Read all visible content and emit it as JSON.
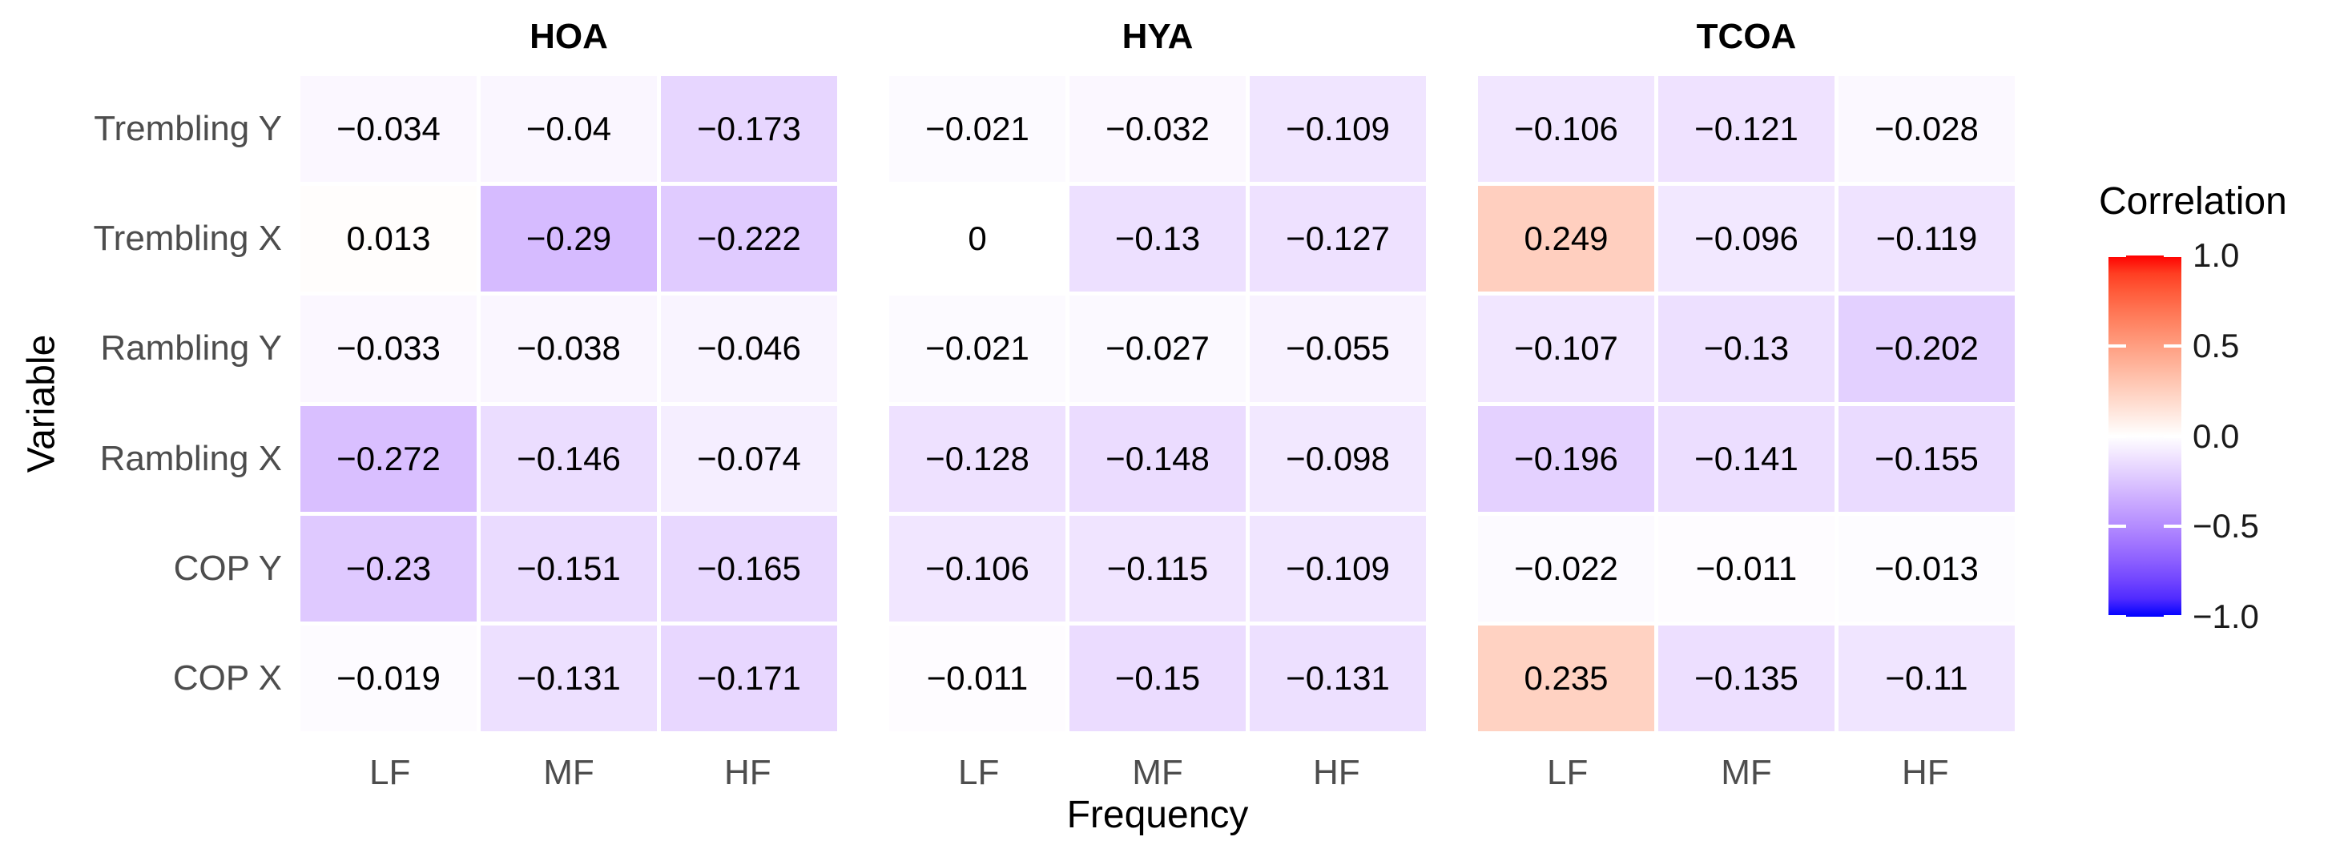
{
  "chart_data": {
    "type": "heatmap",
    "xlabel": "Frequency",
    "ylabel": "Variable",
    "rows": [
      "Trembling Y",
      "Trembling X",
      "Rambling Y",
      "Rambling X",
      "COP Y",
      "COP X"
    ],
    "columns": [
      "LF",
      "MF",
      "HF"
    ],
    "facets": [
      {
        "title": "HOA",
        "values": [
          [
            -0.034,
            -0.04,
            -0.173
          ],
          [
            0.013,
            -0.29,
            -0.222
          ],
          [
            -0.033,
            -0.038,
            -0.046
          ],
          [
            -0.272,
            -0.146,
            -0.074
          ],
          [
            -0.23,
            -0.151,
            -0.165
          ],
          [
            -0.019,
            -0.131,
            -0.171
          ]
        ],
        "labels": [
          [
            "−0.034",
            "−0.04",
            "−0.173"
          ],
          [
            "0.013",
            "−0.29",
            "−0.222"
          ],
          [
            "−0.033",
            "−0.038",
            "−0.046"
          ],
          [
            "−0.272",
            "−0.146",
            "−0.074"
          ],
          [
            "−0.23",
            "−0.151",
            "−0.165"
          ],
          [
            "−0.019",
            "−0.131",
            "−0.171"
          ]
        ]
      },
      {
        "title": "HYA",
        "values": [
          [
            -0.021,
            -0.032,
            -0.109
          ],
          [
            0,
            -0.13,
            -0.127
          ],
          [
            -0.021,
            -0.027,
            -0.055
          ],
          [
            -0.128,
            -0.148,
            -0.098
          ],
          [
            -0.106,
            -0.115,
            -0.109
          ],
          [
            -0.011,
            -0.15,
            -0.131
          ]
        ],
        "labels": [
          [
            "−0.021",
            "−0.032",
            "−0.109"
          ],
          [
            "0",
            "−0.13",
            "−0.127"
          ],
          [
            "−0.021",
            "−0.027",
            "−0.055"
          ],
          [
            "−0.128",
            "−0.148",
            "−0.098"
          ],
          [
            "−0.106",
            "−0.115",
            "−0.109"
          ],
          [
            "−0.011",
            "−0.15",
            "−0.131"
          ]
        ]
      },
      {
        "title": "TCOA",
        "values": [
          [
            -0.106,
            -0.121,
            -0.028
          ],
          [
            0.249,
            -0.096,
            -0.119
          ],
          [
            -0.107,
            -0.13,
            -0.202
          ],
          [
            -0.196,
            -0.141,
            -0.155
          ],
          [
            -0.022,
            -0.011,
            -0.013
          ],
          [
            0.235,
            -0.135,
            -0.11
          ]
        ],
        "labels": [
          [
            "−0.106",
            "−0.121",
            "−0.028"
          ],
          [
            "0.249",
            "−0.096",
            "−0.119"
          ],
          [
            "−0.107",
            "−0.13",
            "−0.202"
          ],
          [
            "−0.196",
            "−0.141",
            "−0.155"
          ],
          [
            "−0.022",
            "−0.011",
            "−0.013"
          ],
          [
            "0.235",
            "−0.135",
            "−0.11"
          ]
        ]
      }
    ],
    "legend": {
      "title": "Correlation",
      "breaks": [
        1.0,
        0.5,
        0.0,
        -0.5,
        -1.0
      ],
      "labels": [
        "1.0",
        "0.5",
        "0.0",
        "−0.5",
        "−1.0"
      ],
      "range": [
        -1,
        1
      ]
    },
    "colors": {
      "scale_low": "#0000FF",
      "scale_mid": "#FFFFFF",
      "scale_high": "#FF0000",
      "axis_text": "#4D4D4D",
      "text": "#1A1A1A"
    }
  }
}
